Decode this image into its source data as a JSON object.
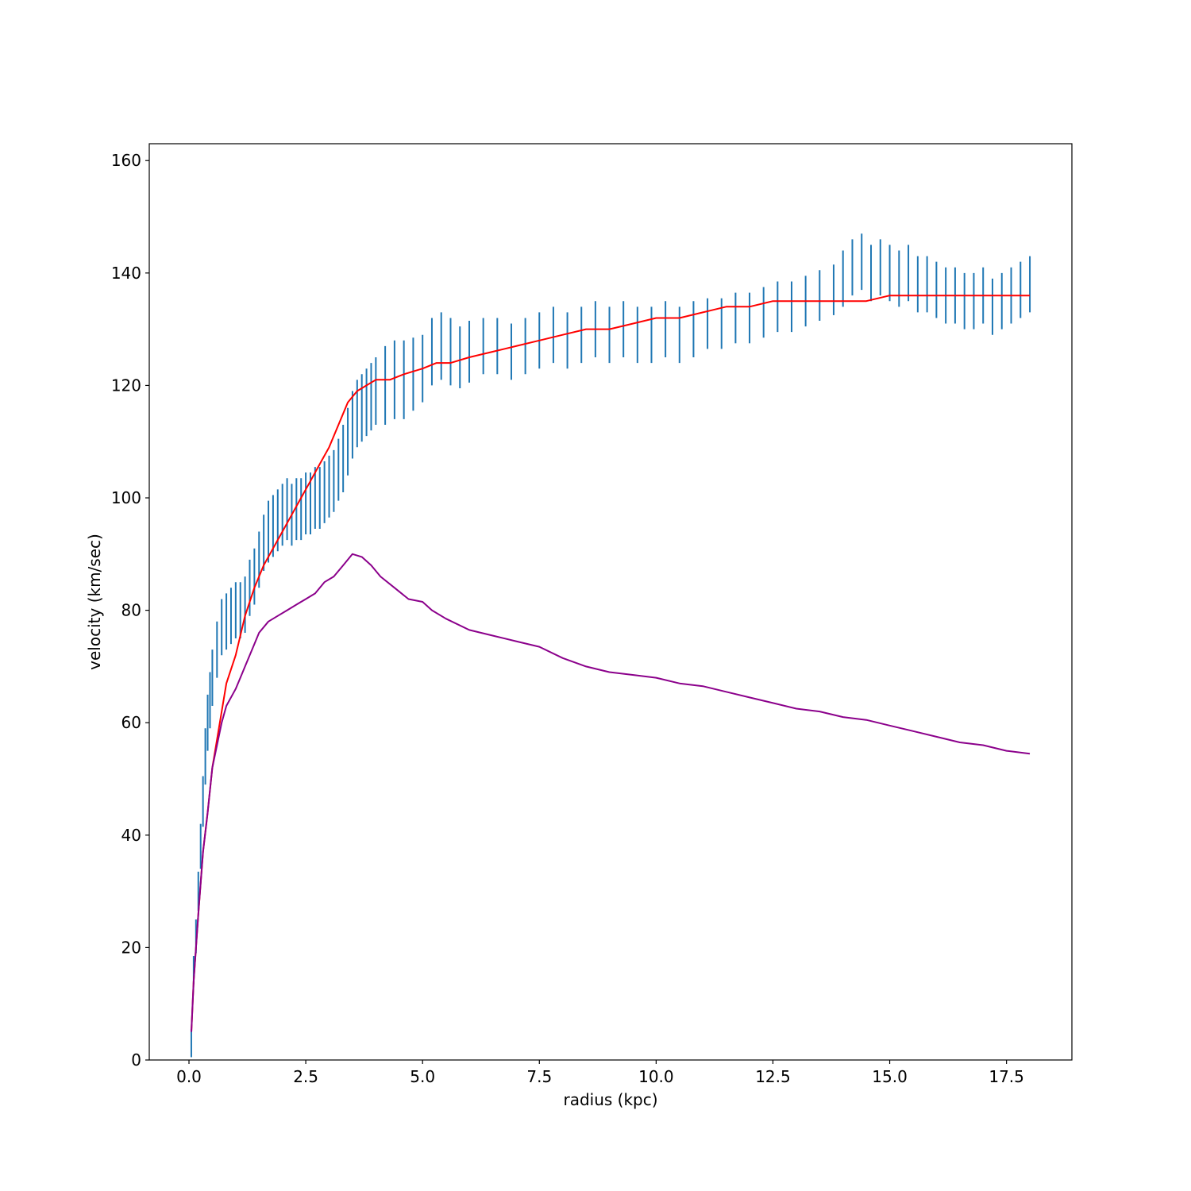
{
  "chart_data": {
    "type": "line",
    "title": "",
    "xlabel": "radius (kpc)",
    "ylabel": "velocity (km/sec)",
    "xlim": [
      -0.85,
      18.9
    ],
    "ylim": [
      0,
      163
    ],
    "xticks": [
      0.0,
      2.5,
      5.0,
      7.5,
      10.0,
      12.5,
      15.0,
      17.5
    ],
    "xtick_labels": [
      "0.0",
      "2.5",
      "5.0",
      "7.5",
      "10.0",
      "12.5",
      "15.0",
      "17.5"
    ],
    "yticks": [
      0,
      20,
      40,
      60,
      80,
      100,
      120,
      140,
      160
    ],
    "ytick_labels": [
      "0",
      "20",
      "40",
      "60",
      "80",
      "100",
      "120",
      "140",
      "160"
    ],
    "grid": false,
    "colors": {
      "observed": "#1f77b4",
      "model_total": "#ff0000",
      "model_component": "#8b008b"
    },
    "series": [
      {
        "kind": "errorbar",
        "color": "#1f77b4",
        "x": [
          0.05,
          0.1,
          0.15,
          0.2,
          0.25,
          0.3,
          0.35,
          0.4,
          0.45,
          0.5,
          0.6,
          0.7,
          0.8,
          0.9,
          1.0,
          1.1,
          1.2,
          1.3,
          1.4,
          1.5,
          1.6,
          1.7,
          1.8,
          1.9,
          2.0,
          2.1,
          2.2,
          2.3,
          2.4,
          2.5,
          2.6,
          2.7,
          2.8,
          2.9,
          3.0,
          3.1,
          3.2,
          3.3,
          3.4,
          3.5,
          3.6,
          3.7,
          3.8,
          3.9,
          4.0,
          4.2,
          4.4,
          4.6,
          4.8,
          5.0,
          5.2,
          5.4,
          5.6,
          5.8,
          6.0,
          6.3,
          6.6,
          6.9,
          7.2,
          7.5,
          7.8,
          8.1,
          8.4,
          8.7,
          9.0,
          9.3,
          9.6,
          9.9,
          10.2,
          10.5,
          10.8,
          11.1,
          11.4,
          11.7,
          12.0,
          12.3,
          12.6,
          12.9,
          13.2,
          13.5,
          13.8,
          14.0,
          14.2,
          14.4,
          14.6,
          14.8,
          15.0,
          15.2,
          15.4,
          15.6,
          15.8,
          16.0,
          16.2,
          16.4,
          16.6,
          16.8,
          17.0,
          17.2,
          17.4,
          17.6,
          17.8,
          18.0
        ],
        "y": [
          3,
          16,
          22,
          30,
          38,
          46,
          54,
          60,
          64,
          68,
          73,
          77,
          78,
          79,
          80,
          80,
          81,
          84,
          86,
          89,
          92,
          94,
          95,
          96,
          97,
          98,
          97,
          98,
          98,
          99,
          99,
          100,
          100,
          101,
          102,
          103,
          105,
          107,
          110,
          113,
          115,
          116,
          117,
          118,
          119,
          120,
          121,
          121,
          122,
          123,
          126,
          127,
          126,
          125,
          126,
          127,
          127,
          126,
          127,
          128,
          129,
          128,
          129,
          130,
          129,
          130,
          129,
          129,
          130,
          129,
          130,
          131,
          131,
          132,
          132,
          133,
          134,
          134,
          135,
          136,
          137,
          139,
          141,
          142,
          140,
          141,
          140,
          139,
          140,
          138,
          138,
          137,
          136,
          136,
          135,
          135,
          136,
          134,
          135,
          136,
          137,
          138
        ],
        "err": [
          2.5,
          2.5,
          3,
          3.5,
          4,
          4.5,
          5,
          5,
          5,
          5,
          5,
          5,
          5,
          5,
          5,
          5,
          5,
          5,
          5,
          5,
          5,
          5.5,
          5.5,
          5.5,
          5.5,
          5.5,
          5.5,
          5.5,
          5.5,
          5.5,
          5.5,
          5.5,
          5.5,
          5.5,
          5.5,
          5.5,
          5.5,
          6,
          6,
          6,
          6,
          6,
          6,
          6,
          6,
          7,
          7,
          7,
          6.5,
          6,
          6,
          6,
          6,
          5.5,
          5.5,
          5,
          5,
          5,
          5,
          5,
          5,
          5,
          5,
          5,
          5,
          5,
          5,
          5,
          5,
          5,
          5,
          4.5,
          4.5,
          4.5,
          4.5,
          4.5,
          4.5,
          4.5,
          4.5,
          4.5,
          4.5,
          5,
          5,
          5,
          5,
          5,
          5,
          5,
          5,
          5,
          5,
          5,
          5,
          5,
          5,
          5,
          5,
          5,
          5,
          5,
          5,
          5
        ]
      },
      {
        "kind": "line",
        "color": "#ff0000",
        "x": [
          0.05,
          0.1,
          0.2,
          0.3,
          0.4,
          0.5,
          0.6,
          0.7,
          0.8,
          1.0,
          1.2,
          1.4,
          1.6,
          1.8,
          2.0,
          2.2,
          2.4,
          2.6,
          2.8,
          3.0,
          3.2,
          3.4,
          3.6,
          3.8,
          4.0,
          4.3,
          4.6,
          5.0,
          5.3,
          5.6,
          6.0,
          6.5,
          7.0,
          7.5,
          8.0,
          8.5,
          9.0,
          9.5,
          10.0,
          10.5,
          11.0,
          11.5,
          12.0,
          12.5,
          13.0,
          13.5,
          14.0,
          14.5,
          15.0,
          15.5,
          16.0,
          16.5,
          17.0,
          17.5,
          18.0
        ],
        "y": [
          5,
          14,
          26,
          37,
          44,
          52,
          57,
          62,
          67,
          72,
          79,
          84,
          88,
          91,
          94,
          97,
          100,
          103,
          106,
          109,
          113,
          117,
          119,
          120,
          121,
          121,
          122,
          123,
          124,
          124,
          125,
          126,
          127,
          128,
          129,
          130,
          130,
          131,
          132,
          132,
          133,
          134,
          134,
          135,
          135,
          135,
          135,
          135,
          136,
          136,
          136,
          136,
          136,
          136,
          136
        ]
      },
      {
        "kind": "line",
        "color": "#8b008b",
        "x": [
          0.05,
          0.1,
          0.2,
          0.3,
          0.4,
          0.5,
          0.6,
          0.7,
          0.8,
          1.0,
          1.1,
          1.2,
          1.3,
          1.4,
          1.5,
          1.7,
          1.9,
          2.1,
          2.3,
          2.5,
          2.7,
          2.9,
          3.1,
          3.3,
          3.5,
          3.7,
          3.9,
          4.1,
          4.4,
          4.7,
          5.0,
          5.2,
          5.5,
          6.0,
          6.5,
          7.0,
          7.5,
          8.0,
          8.5,
          9.0,
          9.5,
          10.0,
          10.5,
          11.0,
          11.5,
          12.0,
          12.5,
          13.0,
          13.5,
          14.0,
          14.5,
          15.0,
          15.5,
          16.0,
          16.5,
          17.0,
          17.5,
          18.0
        ],
        "y": [
          5,
          14,
          26,
          37,
          44,
          52,
          56,
          60,
          63,
          66,
          68,
          70,
          72,
          74,
          76,
          78,
          79,
          80,
          81,
          82,
          83,
          85,
          86,
          88,
          90,
          89.5,
          88,
          86,
          84,
          82,
          81.5,
          80,
          78.5,
          76.5,
          75.5,
          74.5,
          73.5,
          71.5,
          70,
          69,
          68.5,
          68,
          67,
          66.5,
          65.5,
          64.5,
          63.5,
          62.5,
          62,
          61,
          60.5,
          59.5,
          58.5,
          57.5,
          56.5,
          56,
          55,
          54.5
        ]
      }
    ]
  }
}
